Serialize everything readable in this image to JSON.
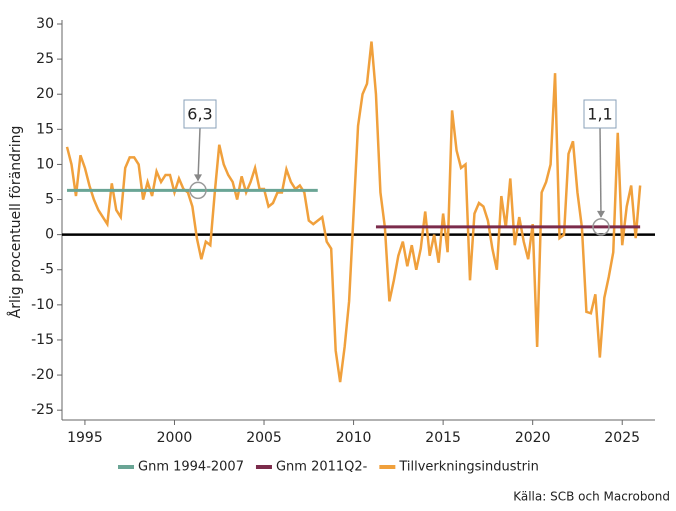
{
  "chart_data": {
    "type": "line",
    "ylabel": "Årlig procentuell förändring",
    "source": "Källa: SCB och Macrobond",
    "xlim": [
      1993.72,
      2026.83
    ],
    "xticks": [
      1995,
      2000,
      2005,
      2010,
      2015,
      2020,
      2025
    ],
    "ylim": [
      -26.4,
      30
    ],
    "yticks": [
      -25,
      -20,
      -15,
      -10,
      -5,
      0,
      5,
      10,
      15,
      20,
      25,
      30
    ],
    "series": [
      {
        "name": "Gnm 1994-2007",
        "color": "#6aa595",
        "x": [
          1994,
          2008
        ],
        "values": [
          6.3,
          6.3
        ]
      },
      {
        "name": "Gnm 2011Q2-",
        "color": "#7b2b4b",
        "x": [
          2011.25,
          2026
        ],
        "values": [
          1.1,
          1.1
        ]
      },
      {
        "name": "Tillverkningsindustrin",
        "color": "#f0a03c",
        "x": [
          1994,
          1994.25,
          1994.5,
          1994.75,
          1995,
          1995.25,
          1995.5,
          1995.75,
          1996,
          1996.25,
          1996.5,
          1996.75,
          1997,
          1997.25,
          1997.5,
          1997.75,
          1998,
          1998.25,
          1998.5,
          1998.75,
          1999,
          1999.25,
          1999.5,
          1999.75,
          2000,
          2000.25,
          2000.5,
          2000.75,
          2001,
          2001.25,
          2001.5,
          2001.75,
          2002,
          2002.25,
          2002.5,
          2002.75,
          2003,
          2003.25,
          2003.5,
          2003.75,
          2004,
          2004.25,
          2004.5,
          2004.75,
          2005,
          2005.25,
          2005.5,
          2005.75,
          2006,
          2006.25,
          2006.5,
          2006.75,
          2007,
          2007.25,
          2007.5,
          2007.75,
          2008,
          2008.25,
          2008.5,
          2008.75,
          2009,
          2009.25,
          2009.5,
          2009.75,
          2010,
          2010.25,
          2010.5,
          2010.75,
          2011,
          2011.25,
          2011.5,
          2011.75,
          2012,
          2012.25,
          2012.5,
          2012.75,
          2013,
          2013.25,
          2013.5,
          2013.75,
          2014,
          2014.25,
          2014.5,
          2014.75,
          2015,
          2015.25,
          2015.5,
          2015.75,
          2016,
          2016.25,
          2016.5,
          2016.75,
          2017,
          2017.25,
          2017.5,
          2017.75,
          2018,
          2018.25,
          2018.5,
          2018.75,
          2019,
          2019.25,
          2019.5,
          2019.75,
          2020,
          2020.25,
          2020.5,
          2020.75,
          2021,
          2021.25,
          2021.5,
          2021.75,
          2022,
          2022.25,
          2022.5,
          2022.75,
          2023,
          2023.25,
          2023.5,
          2023.75,
          2024,
          2024.25,
          2024.5,
          2024.75,
          2025,
          2025.25,
          2025.5,
          2025.75,
          2026
        ],
        "values": [
          12.5,
          10,
          5.5,
          11.3,
          9.5,
          7,
          5,
          3.5,
          2.5,
          1.5,
          7.3,
          3.5,
          2.5,
          9.5,
          11,
          11,
          10,
          5,
          7.5,
          5.5,
          9,
          7.5,
          8.5,
          8.5,
          6,
          8,
          6.5,
          6,
          4,
          -0.5,
          -3.5,
          -1,
          -1.5,
          6,
          12.8,
          10,
          8.5,
          7.5,
          5,
          8.3,
          6,
          7.5,
          9.5,
          6.5,
          6.5,
          4,
          4.5,
          6,
          6,
          9.3,
          7.5,
          6.5,
          7,
          6,
          2,
          1.5,
          2,
          2.5,
          -1,
          -2,
          -16.5,
          -21,
          -16,
          -9.5,
          3,
          15.5,
          20,
          21.5,
          27.5,
          20,
          6,
          1,
          -9.5,
          -6.5,
          -3,
          -1,
          -4.5,
          -1.5,
          -5,
          -2,
          3.3,
          -3,
          0,
          -4,
          3,
          -2.5,
          17.7,
          12,
          9.5,
          10,
          -6.5,
          3,
          4.5,
          4,
          2,
          -2,
          -5,
          5.5,
          1,
          8,
          -1.5,
          2.5,
          -1,
          -3.5,
          1.5,
          -16,
          6,
          7.5,
          10,
          23,
          -0.5,
          0,
          11.5,
          13.3,
          6,
          1,
          -11,
          -11.2,
          -8.5,
          -17.5,
          -9,
          -6,
          -2.5,
          14.5,
          -1.5,
          4,
          7,
          -0.5,
          7
        ]
      }
    ],
    "annotations": [
      {
        "text": "6,3"
      },
      {
        "text": "1,1"
      }
    ]
  }
}
